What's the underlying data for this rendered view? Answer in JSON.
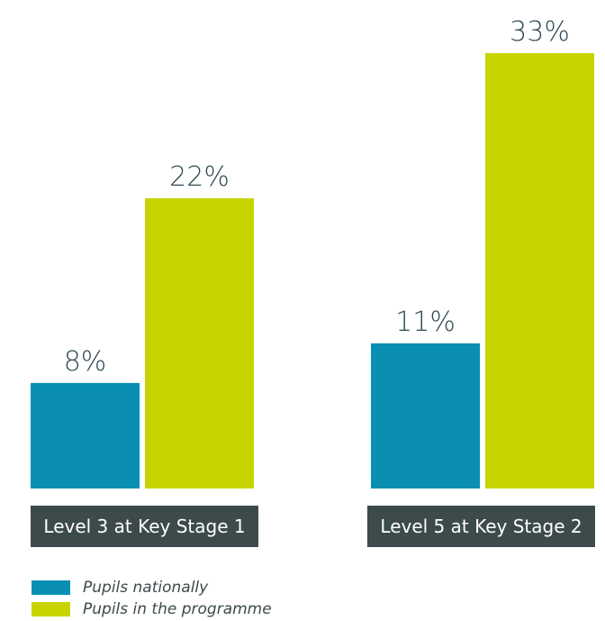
{
  "colors": {
    "nationally": "#0a8fb2",
    "programme": "#c8d400",
    "label_box": "#3d4a4b",
    "value_text": "#2f4a55"
  },
  "chart_data": {
    "type": "bar",
    "categories": [
      "Level 3 at Key Stage 1",
      "Level 5 at Key Stage 2"
    ],
    "series": [
      {
        "name": "Pupils nationally",
        "values": [
          8,
          11
        ]
      },
      {
        "name": "Pupils in the programme",
        "values": [
          22,
          33
        ]
      }
    ],
    "value_labels": [
      [
        "8%",
        "11%"
      ],
      [
        "22%",
        "33%"
      ]
    ],
    "ylim": [
      0,
      33
    ],
    "grid": false,
    "legend_position": "bottom-left"
  }
}
